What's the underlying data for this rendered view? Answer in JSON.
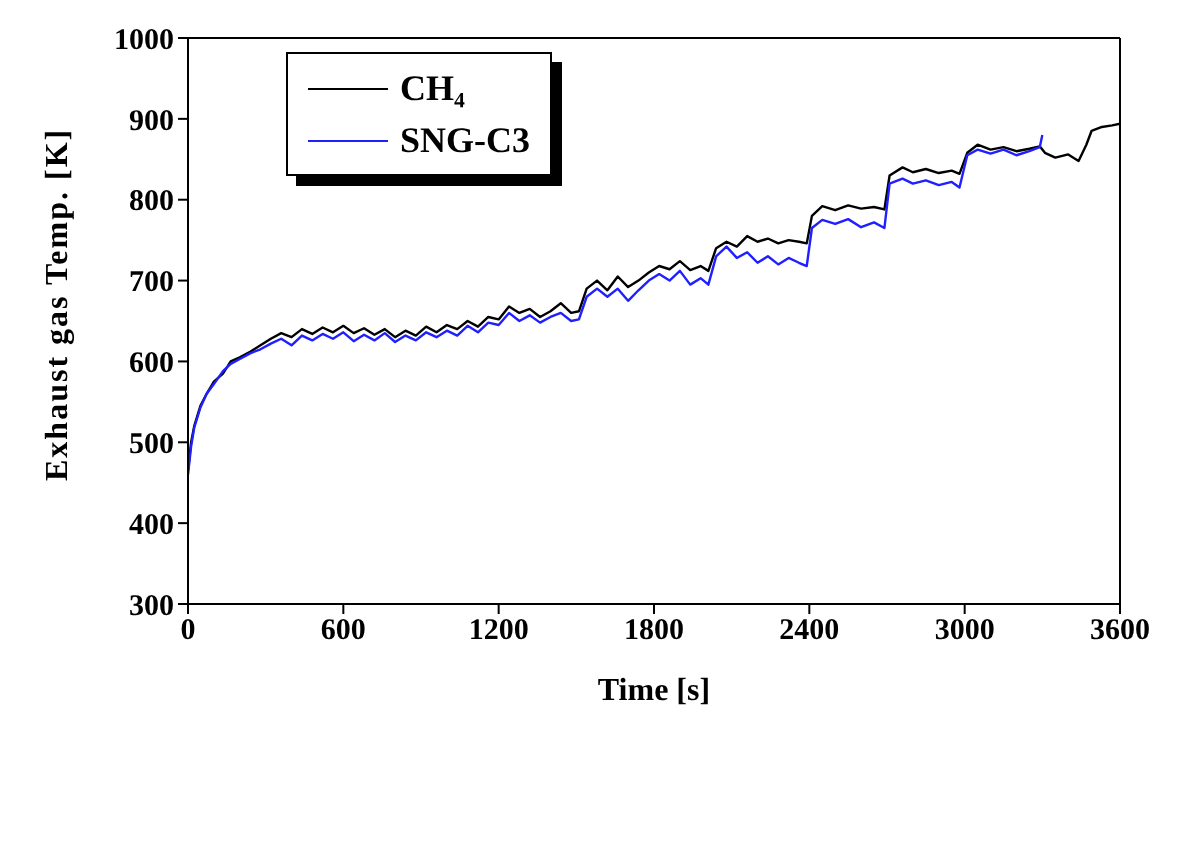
{
  "chart_data": {
    "type": "line",
    "xlabel": "Time [s]",
    "ylabel": "Exhaust gas Temp. [K]",
    "xlim": [
      0,
      3600
    ],
    "xticks": [
      0,
      600,
      1200,
      1800,
      2400,
      3000,
      3600
    ],
    "ylim": [
      300,
      1000
    ],
    "yticks": [
      300,
      400,
      500,
      600,
      700,
      800,
      900,
      1000
    ],
    "grid": false,
    "legend": "top left",
    "marker": "none",
    "line_style": "solid",
    "series": [
      {
        "name": "CH₄",
        "color": "#000000",
        "x": [
          0,
          12,
          24,
          48,
          72,
          100,
          135,
          165,
          200,
          240,
          280,
          320,
          360,
          400,
          440,
          480,
          520,
          560,
          600,
          640,
          680,
          720,
          760,
          800,
          840,
          880,
          920,
          960,
          1000,
          1040,
          1080,
          1120,
          1160,
          1200,
          1240,
          1280,
          1320,
          1360,
          1400,
          1440,
          1480,
          1510,
          1540,
          1580,
          1620,
          1660,
          1700,
          1740,
          1780,
          1820,
          1860,
          1900,
          1940,
          1980,
          2010,
          2040,
          2080,
          2120,
          2160,
          2200,
          2240,
          2280,
          2320,
          2360,
          2390,
          2410,
          2450,
          2500,
          2550,
          2600,
          2650,
          2690,
          2710,
          2760,
          2800,
          2850,
          2900,
          2950,
          2980,
          3010,
          3050,
          3100,
          3150,
          3200,
          3250,
          3290,
          3310,
          3350,
          3400,
          3440,
          3470,
          3490,
          3530,
          3570,
          3600
        ],
        "values": [
          465,
          500,
          520,
          545,
          560,
          575,
          585,
          600,
          605,
          612,
          620,
          628,
          635,
          630,
          640,
          634,
          642,
          636,
          644,
          635,
          641,
          633,
          640,
          630,
          638,
          632,
          643,
          636,
          645,
          640,
          650,
          643,
          655,
          652,
          668,
          660,
          665,
          655,
          662,
          672,
          660,
          662,
          690,
          700,
          688,
          705,
          692,
          700,
          710,
          718,
          714,
          724,
          713,
          718,
          712,
          740,
          748,
          742,
          755,
          748,
          752,
          746,
          750,
          748,
          746,
          780,
          792,
          787,
          793,
          789,
          791,
          788,
          830,
          840,
          834,
          838,
          833,
          836,
          832,
          858,
          868,
          862,
          865,
          860,
          863,
          866,
          858,
          852,
          856,
          848,
          868,
          885,
          890,
          892,
          894
        ]
      },
      {
        "name": "SNG-C3",
        "color": "#1f1fff",
        "x": [
          0,
          12,
          24,
          48,
          72,
          100,
          135,
          165,
          200,
          240,
          280,
          320,
          360,
          400,
          440,
          480,
          520,
          560,
          600,
          640,
          680,
          720,
          760,
          800,
          840,
          880,
          920,
          960,
          1000,
          1040,
          1080,
          1120,
          1160,
          1200,
          1240,
          1280,
          1320,
          1360,
          1400,
          1440,
          1480,
          1510,
          1540,
          1580,
          1620,
          1660,
          1700,
          1740,
          1780,
          1820,
          1860,
          1900,
          1940,
          1980,
          2010,
          2040,
          2080,
          2120,
          2160,
          2200,
          2240,
          2280,
          2320,
          2360,
          2390,
          2410,
          2450,
          2500,
          2550,
          2600,
          2650,
          2690,
          2710,
          2760,
          2800,
          2850,
          2900,
          2950,
          2980,
          3010,
          3050,
          3100,
          3150,
          3200,
          3250,
          3290,
          3300
        ],
        "values": [
          460,
          495,
          518,
          543,
          560,
          572,
          588,
          597,
          603,
          610,
          615,
          622,
          628,
          620,
          632,
          626,
          634,
          628,
          636,
          625,
          633,
          626,
          635,
          624,
          632,
          626,
          636,
          630,
          638,
          632,
          644,
          636,
          648,
          645,
          660,
          650,
          657,
          648,
          655,
          660,
          650,
          652,
          680,
          690,
          680,
          690,
          675,
          688,
          700,
          708,
          700,
          712,
          695,
          703,
          695,
          730,
          742,
          728,
          735,
          722,
          730,
          720,
          728,
          722,
          718,
          765,
          775,
          770,
          776,
          766,
          772,
          765,
          820,
          826,
          820,
          824,
          818,
          822,
          815,
          855,
          862,
          857,
          862,
          855,
          860,
          865,
          880
        ]
      }
    ]
  }
}
